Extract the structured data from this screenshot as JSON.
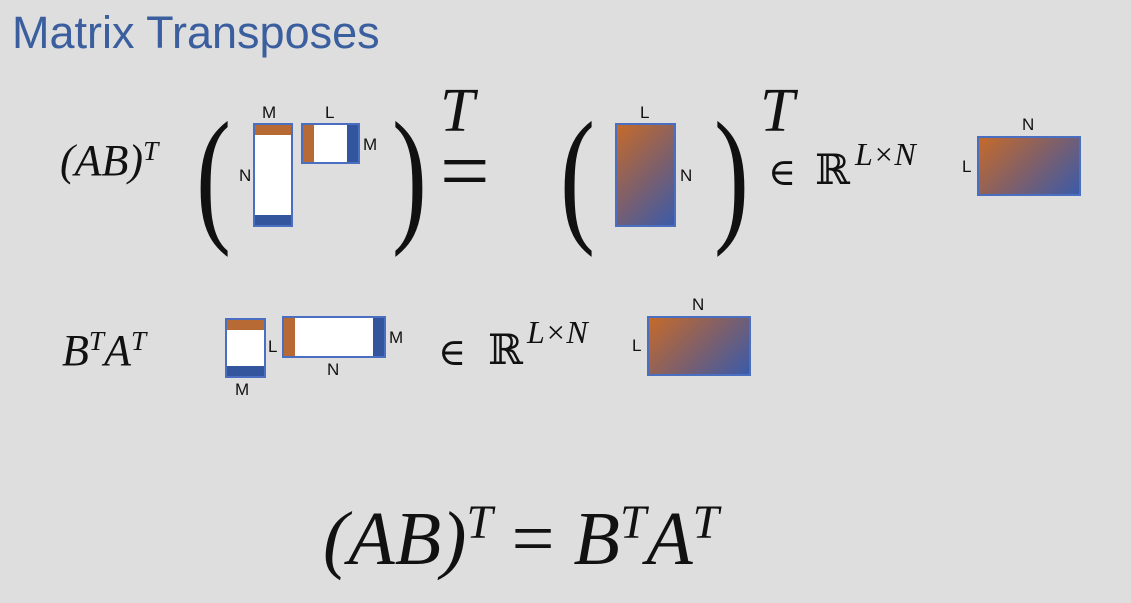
{
  "title": "Matrix Transposes",
  "row1": {
    "lhs_base": "(AB)",
    "lhs_sup": "T",
    "outer_sup": "T",
    "equals": "=",
    "element_of": "∈",
    "reals": "ℝ",
    "dims": "L×N",
    "labels": {
      "a_top": "M",
      "a_left": "N",
      "b_top": "L",
      "b_right": "M",
      "prod_top": "L",
      "prod_right": "N",
      "res_top": "N",
      "res_left": "L"
    }
  },
  "row2": {
    "b_base": "B",
    "b_sup": "T",
    "a_base": "A",
    "a_sup": "T",
    "element_of": "∈",
    "reals": "ℝ",
    "dims": "L×N",
    "labels": {
      "bt_right": "L",
      "bt_bottom": "M",
      "at_right": "M",
      "at_bottom": "N",
      "res_top": "N",
      "res_left": "L"
    }
  },
  "identity": {
    "lhs_base": "(AB)",
    "lhs_sup": "T",
    "equals": "=",
    "b": "B",
    "b_sup": "T",
    "a": "A",
    "a_sup": "T"
  },
  "colors": {
    "title": "#3a5e9e",
    "border": "#4a6fc0",
    "orange": "#b86a34",
    "blue": "#33559e",
    "background": "#dedede"
  }
}
